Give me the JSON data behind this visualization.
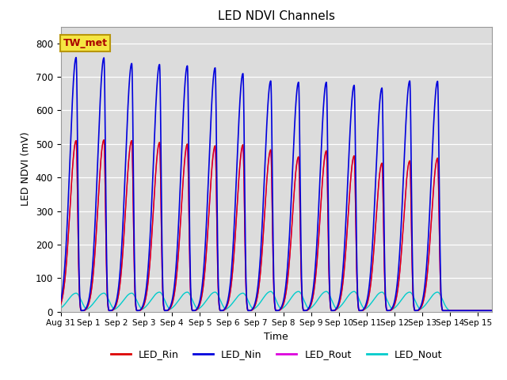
{
  "title": "LED NDVI Channels",
  "xlabel": "Time",
  "ylabel": "LED NDVI (mV)",
  "bg_color": "#dcdcdc",
  "annotation_text": "TW_met",
  "annotation_bg": "#f5e642",
  "annotation_border": "#b8960c",
  "legend_labels": [
    "LED_Rin",
    "LED_Nin",
    "LED_Rout",
    "LED_Nout"
  ],
  "legend_colors": [
    "#dd0000",
    "#0000dd",
    "#dd00dd",
    "#00cccc"
  ],
  "ylim": [
    0,
    850
  ],
  "spike_positions_days": [
    0.55,
    1.55,
    2.55,
    3.55,
    4.55,
    5.55,
    6.55,
    7.55,
    8.55,
    9.55,
    10.55,
    11.55,
    12.55,
    13.55
  ],
  "nin_peaks": [
    758,
    757,
    740,
    737,
    733,
    727,
    710,
    688,
    684,
    684,
    675,
    667,
    688,
    687
  ],
  "rin_peaks": [
    510,
    512,
    510,
    505,
    500,
    495,
    498,
    483,
    462,
    480,
    465,
    443,
    450,
    458
  ],
  "rout_peaks": [
    510,
    512,
    510,
    500,
    493,
    490,
    493,
    480,
    460,
    476,
    462,
    440,
    448,
    455
  ],
  "nout_peaks": [
    55,
    55,
    55,
    58,
    58,
    58,
    55,
    60,
    60,
    60,
    60,
    58,
    58,
    58
  ],
  "base_value": 3,
  "total_days": 15.5,
  "xtick_labels": [
    "Aug 31",
    "Sep 1",
    "Sep 2",
    "Sep 3",
    "Sep 4",
    "Sep 5",
    "Sep 6",
    "Sep 7",
    "Sep 8",
    "Sep 9",
    "Sep 10",
    "Sep 11",
    "Sep 12",
    "Sep 13",
    "Sep 14",
    "Sep 15"
  ],
  "xtick_positions": [
    0,
    1,
    2,
    3,
    4,
    5,
    6,
    7,
    8,
    9,
    10,
    11,
    12,
    13,
    14,
    15
  ],
  "ytick_labels": [
    "0",
    "100",
    "200",
    "300",
    "400",
    "500",
    "600",
    "700",
    "800"
  ],
  "ytick_positions": [
    0,
    100,
    200,
    300,
    400,
    500,
    600,
    700,
    800
  ]
}
